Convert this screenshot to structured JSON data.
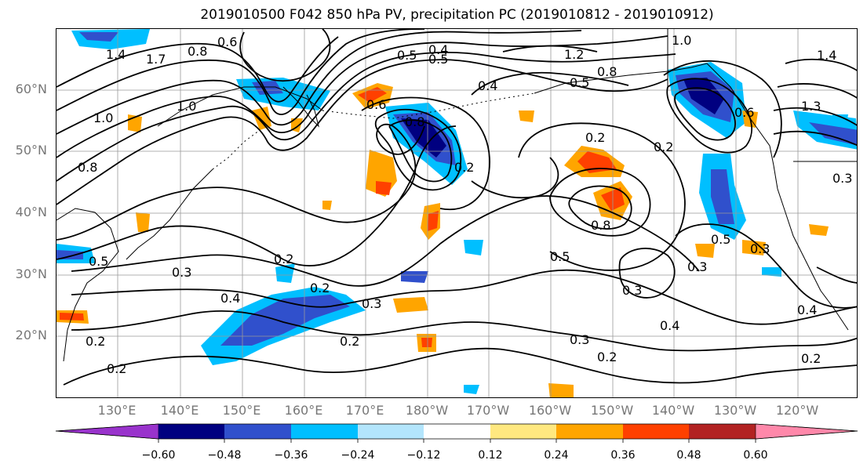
{
  "title": "2019010500 F042 850 hPa PV, precipitation PC (2019010812 - 2019010912)",
  "map": {
    "lat_labels": [
      "60°N",
      "50°N",
      "40°N",
      "30°N",
      "20°N"
    ],
    "lon_labels": [
      "130°E",
      "140°E",
      "150°E",
      "160°E",
      "170°E",
      "180°W",
      "170°W",
      "160°W",
      "150°W",
      "140°W",
      "130°W",
      "120°W"
    ],
    "contour_labels": [
      "1.4",
      "1.7",
      "0.8",
      "1.0",
      "1.0",
      "0.8",
      "0.6",
      "0.5",
      "0.4",
      "0.5",
      "0.4",
      "1.2",
      "0.8",
      "0.5",
      "0.6",
      "0.2",
      "0.2",
      "0.2",
      "0.8",
      "0.5",
      "0.3",
      "0.2",
      "0.3",
      "0.4",
      "0.2",
      "0.3",
      "0.2",
      "0.4",
      "0.3",
      "0.2",
      "0.2",
      "0.2",
      "0.3",
      "0.5",
      "0.3",
      "0.2",
      "0.4",
      "1.0",
      "1.4",
      "1.3",
      "0.3",
      "0.6",
      "0.8",
      "0.5"
    ]
  },
  "colorbar": {
    "tick_labels": [
      "−0.60",
      "−0.48",
      "−0.36",
      "−0.24",
      "−0.12",
      "0.12",
      "0.24",
      "0.36",
      "0.48",
      "0.60"
    ],
    "colors": [
      "#9933cc",
      "#000080",
      "#3050cc",
      "#00bfff",
      "#b3e5fc",
      "#ffffff",
      "#ffe880",
      "#ffa500",
      "#ff4000",
      "#b22222",
      "#ff88aa"
    ]
  }
}
